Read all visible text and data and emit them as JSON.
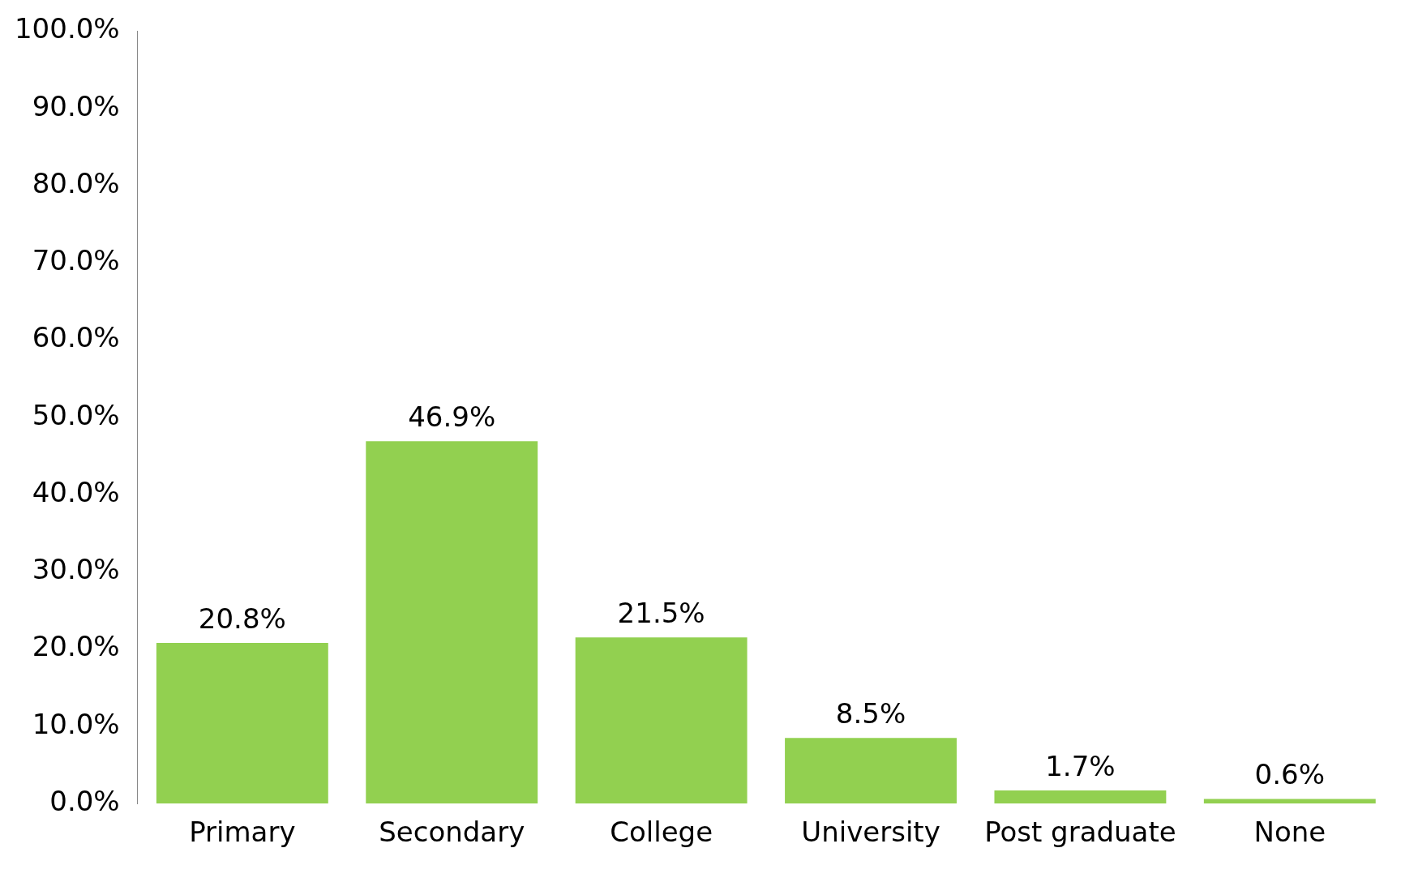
{
  "chart_data": {
    "type": "bar",
    "categories": [
      "Primary",
      "Secondary",
      "College",
      "University",
      "Post graduate",
      "None"
    ],
    "values": [
      20.8,
      46.9,
      21.5,
      8.5,
      1.7,
      0.6
    ],
    "value_labels": [
      "20.8%",
      "46.9%",
      "21.5%",
      "8.5%",
      "1.7%",
      "0.6%"
    ],
    "color": "#92d050",
    "ylim": [
      0,
      100
    ],
    "yticks": [
      {
        "value": 0,
        "label": "0.0%"
      },
      {
        "value": 10,
        "label": "10.0%"
      },
      {
        "value": 20,
        "label": "20.0%"
      },
      {
        "value": 30,
        "label": "30.0%"
      },
      {
        "value": 40,
        "label": "40.0%"
      },
      {
        "value": 50,
        "label": "50.0%"
      },
      {
        "value": 60,
        "label": "60.0%"
      },
      {
        "value": 70,
        "label": "70.0%"
      },
      {
        "value": 80,
        "label": "80.0%"
      },
      {
        "value": 90,
        "label": "90.0%"
      },
      {
        "value": 100,
        "label": "100.0%"
      }
    ],
    "grid": false,
    "legend": false
  }
}
